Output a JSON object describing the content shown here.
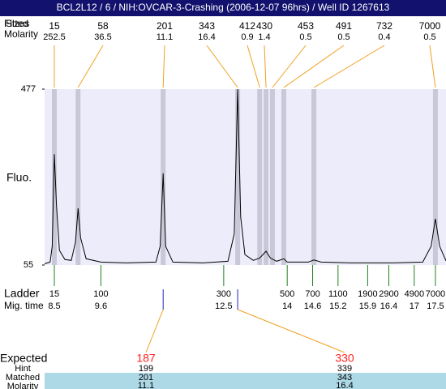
{
  "header": {
    "title": "BCL2L12 / 6 / NIH:OVCAR-3-Crashing (2006-12-07 96hrs) / Well ID 1267613"
  },
  "chart_data": {
    "type": "electropherogram",
    "ylabel": "Fluo.",
    "ylim": [
      55,
      477
    ],
    "yticks": [
      55,
      477
    ],
    "xlim": [
      8.27,
      17.75
    ],
    "plot_color": "#ececfa",
    "band_color": "#c8c8d8",
    "trace_color": "#000000",
    "link_color": "#f0a020",
    "ladder_color": "#208020",
    "marker_color": "#2020c0",
    "expected_color": "#ff2020",
    "row_color": "#add8e6",
    "trace": {
      "x": [
        8.27,
        8.4,
        8.45,
        8.5,
        8.55,
        8.62,
        8.75,
        8.9,
        9.0,
        9.06,
        9.12,
        9.25,
        9.6,
        10.2,
        10.9,
        11.0,
        11.07,
        11.13,
        11.3,
        12.0,
        12.6,
        12.75,
        12.83,
        12.9,
        13.0,
        13.2,
        13.35,
        13.5,
        13.6,
        13.75,
        13.92,
        14.0,
        14.5,
        14.63,
        14.8,
        15.5,
        16.5,
        17.2,
        17.4,
        17.5,
        17.6,
        17.75
      ],
      "y": [
        58,
        62,
        100,
        321,
        200,
        90,
        68,
        66,
        110,
        191,
        120,
        70,
        62,
        60,
        62,
        100,
        275,
        100,
        62,
        60,
        64,
        130,
        477,
        170,
        80,
        66,
        72,
        88,
        72,
        64,
        70,
        62,
        62,
        67,
        62,
        60,
        60,
        62,
        100,
        166,
        100,
        65
      ]
    },
    "peaks": {
      "fitted_label": "Fitted",
      "size_label": "Sizes",
      "molarity_label": "Molarity",
      "time": [
        8.5,
        9.06,
        11.07,
        12.83,
        13.35,
        13.5,
        13.65,
        13.92,
        14.63,
        17.5
      ],
      "size": [
        15,
        58,
        201,
        343,
        412,
        430,
        453,
        491,
        732,
        7000
      ],
      "molarity": [
        252.5,
        36.5,
        11.1,
        16.4,
        0.9,
        1.4,
        0.5,
        0.5,
        0.4,
        0.5
      ]
    },
    "ladder": {
      "label": "Ladder",
      "time_label": "Mig. time",
      "size": [
        15,
        100,
        300,
        500,
        700,
        1100,
        1900,
        2900,
        4900,
        7000
      ],
      "mig_time": [
        8.5,
        9.6,
        12.5,
        14,
        14.6,
        15.2,
        15.9,
        16.4,
        17,
        17.5
      ]
    },
    "expected": {
      "label": "Expected",
      "hint_label": "Hint",
      "matched_label": "Matched",
      "molarity_label": "Molarity",
      "time": [
        11.07,
        12.83
      ],
      "value": [
        187,
        330
      ],
      "hint": [
        199,
        339
      ],
      "matched": [
        201,
        343
      ],
      "molarity": [
        11.1,
        16.4
      ]
    }
  }
}
